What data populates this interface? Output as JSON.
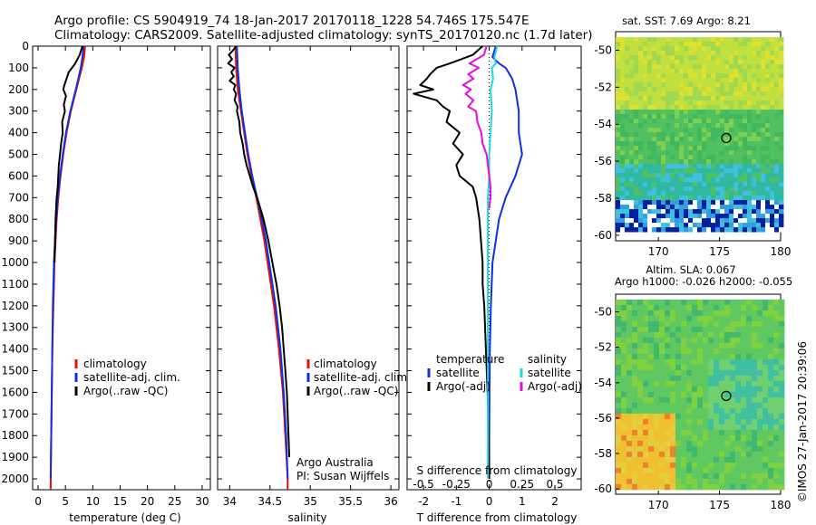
{
  "header": {
    "line1": "Argo profile: CS 5904919_74 18-Jan-2017 20170118_1228 54.746S 175.547E",
    "line2": "Climatology: CARS2009. Satellite-adjusted climatology: synTS_20170120.nc (1.7d later)"
  },
  "colors": {
    "clim": "#e01010",
    "sat": "#1030e0",
    "argo": "#000000",
    "sat_s": "#20d8e0",
    "argo_s": "#e010e0"
  },
  "chart_data": [
    {
      "type": "line",
      "id": "temperature",
      "xlabel": "temperature (deg C)",
      "xlim": [
        -1,
        31.5
      ],
      "ylim": [
        0,
        2050
      ],
      "xticks": [
        0,
        5,
        10,
        15,
        20,
        25,
        30
      ],
      "yticks": [
        0,
        100,
        200,
        300,
        400,
        500,
        600,
        700,
        800,
        900,
        1000,
        1100,
        1200,
        1300,
        1400,
        1500,
        1600,
        1700,
        1800,
        1900,
        2000
      ],
      "legend": [
        "climatology",
        "satellite-adj. clim.",
        "Argo(..raw -QC)"
      ],
      "series": [
        {
          "name": "climatology",
          "color_key": "clim",
          "depth": [
            0,
            50,
            100,
            200,
            300,
            400,
            500,
            600,
            700,
            800,
            900,
            1000,
            1200,
            1400,
            1600,
            1800,
            2000,
            2050
          ],
          "values": [
            8.6,
            8.4,
            8.0,
            7.0,
            6.0,
            5.2,
            4.6,
            4.1,
            3.7,
            3.4,
            3.2,
            3.0,
            2.8,
            2.6,
            2.5,
            2.4,
            2.3,
            2.3
          ]
        },
        {
          "name": "satellite",
          "color_key": "sat",
          "depth": [
            0,
            50,
            100,
            200,
            300,
            400,
            500,
            600,
            700,
            800,
            900,
            1000,
            1200,
            1400,
            1600,
            1800,
            2000
          ],
          "values": [
            8.3,
            8.1,
            7.8,
            6.9,
            5.9,
            5.1,
            4.5,
            4.0,
            3.6,
            3.3,
            3.1,
            2.9,
            2.7,
            2.6,
            2.5,
            2.4,
            2.3
          ]
        },
        {
          "name": "argo",
          "color_key": "argo",
          "depth": [
            0,
            40,
            80,
            120,
            150,
            180,
            200,
            230,
            270,
            300,
            350,
            400,
            450,
            500,
            550,
            600,
            650,
            700,
            750,
            800,
            850,
            900,
            1000
          ],
          "values": [
            8.1,
            7.6,
            6.8,
            5.6,
            5.2,
            4.8,
            4.6,
            5.1,
            4.7,
            4.9,
            4.4,
            4.5,
            4.2,
            4.0,
            3.8,
            3.7,
            3.6,
            3.4,
            3.3,
            3.2,
            3.15,
            3.1,
            3.0
          ]
        }
      ]
    },
    {
      "type": "line",
      "id": "salinity",
      "xlabel": "salinity",
      "xlim": [
        33.85,
        36.1
      ],
      "ylim": [
        0,
        2050
      ],
      "xticks": [
        34,
        34.5,
        35,
        35.5,
        36
      ],
      "legend": [
        "climatology",
        "satellite-adj. clim.",
        "Argo(..raw -QC)"
      ],
      "annotation": [
        "Argo Australia",
        "PI: Susan Wijffels"
      ],
      "series": [
        {
          "name": "climatology",
          "color_key": "clim",
          "depth": [
            0,
            100,
            200,
            300,
            400,
            500,
            600,
            700,
            800,
            900,
            1000,
            1200,
            1400,
            1600,
            1800,
            2000,
            2050
          ],
          "values": [
            34.07,
            34.08,
            34.1,
            34.14,
            34.18,
            34.22,
            34.27,
            34.33,
            34.38,
            34.43,
            34.47,
            34.55,
            34.61,
            34.66,
            34.69,
            34.72,
            34.72
          ]
        },
        {
          "name": "satellite",
          "color_key": "sat",
          "depth": [
            0,
            100,
            200,
            300,
            400,
            500,
            600,
            700,
            800,
            900,
            1000,
            1200,
            1400,
            1600,
            1800,
            2000
          ],
          "values": [
            34.09,
            34.1,
            34.12,
            34.15,
            34.19,
            34.23,
            34.28,
            34.34,
            34.4,
            34.45,
            34.49,
            34.57,
            34.63,
            34.67,
            34.7,
            34.72
          ]
        },
        {
          "name": "argo",
          "color_key": "argo",
          "depth": [
            0,
            20,
            40,
            60,
            80,
            100,
            120,
            140,
            160,
            180,
            200,
            220,
            250,
            280,
            300,
            350,
            400,
            450,
            500,
            550,
            600,
            650,
            700,
            800,
            900,
            1000,
            1100,
            1200,
            1300,
            1400,
            1500,
            1600,
            1700,
            1800,
            1900
          ],
          "values": [
            34.08,
            34.04,
            33.99,
            34.03,
            33.98,
            34.06,
            34.02,
            34.05,
            34.0,
            34.07,
            34.05,
            34.08,
            34.06,
            34.1,
            34.09,
            34.12,
            34.13,
            34.16,
            34.18,
            34.21,
            34.25,
            34.29,
            34.34,
            34.42,
            34.48,
            34.53,
            34.58,
            34.62,
            34.65,
            34.67,
            34.69,
            34.71,
            34.72,
            34.73,
            34.74
          ]
        }
      ]
    },
    {
      "type": "line",
      "id": "difference",
      "xlabel": "T difference from climatology",
      "xlabel2": "S difference from climatology",
      "xlim": [
        -2.5,
        2.8
      ],
      "ylim": [
        0,
        2050
      ],
      "xticks": [
        -2,
        -1,
        0,
        1,
        2
      ],
      "sticks": [
        "-0.5",
        "-0.25",
        "0",
        "0.25",
        "0.5"
      ],
      "legend_left_title": "temperature",
      "legend_right_title": "salinity",
      "legend": [
        "satellite",
        "Argo(-adj)",
        "satellite",
        "Argo(-adj)"
      ],
      "series": [
        {
          "name": "T satellite",
          "color_key": "sat",
          "depth": [
            0,
            50,
            80,
            100,
            150,
            200,
            300,
            400,
            500,
            600,
            700,
            800,
            900,
            1000,
            1200,
            1400,
            1600,
            1800,
            2000
          ],
          "values": [
            0.2,
            0.1,
            0.3,
            0.5,
            0.7,
            0.8,
            0.9,
            0.9,
            1.0,
            0.8,
            0.5,
            0.3,
            0.2,
            0.1,
            0.05,
            0.02,
            0.01,
            0.0,
            0.0
          ]
        },
        {
          "name": "T argo",
          "color_key": "argo",
          "depth": [
            0,
            40,
            80,
            100,
            130,
            150,
            180,
            200,
            220,
            250,
            280,
            300,
            350,
            400,
            450,
            500,
            550,
            600,
            650,
            700,
            800,
            900,
            1000,
            1100,
            1200,
            1400,
            1600,
            1800,
            2000
          ],
          "values": [
            -0.2,
            -0.5,
            -1.2,
            -1.6,
            -1.8,
            -1.9,
            -2.1,
            -1.7,
            -2.3,
            -1.6,
            -1.4,
            -1.2,
            -1.3,
            -0.9,
            -1.1,
            -0.8,
            -1.0,
            -0.9,
            -0.5,
            -0.4,
            -0.3,
            -0.25,
            -0.2,
            -0.2,
            -0.15,
            -0.1,
            -0.05,
            -0.02,
            0.0
          ]
        },
        {
          "name": "S satellite",
          "color_key": "sat_s",
          "depth": [
            0,
            50,
            80,
            100,
            150,
            200,
            300,
            400,
            500,
            600,
            700,
            800,
            900,
            1000,
            1200,
            1400,
            1600,
            1800,
            2000
          ],
          "values": [
            0.06,
            0.04,
            0.05,
            0.02,
            0.03,
            0.01,
            0.02,
            0.01,
            0.0,
            0.0,
            -0.01,
            -0.01,
            -0.01,
            -0.01,
            -0.01,
            -0.01,
            -0.01,
            -0.01,
            -0.01
          ]
        },
        {
          "name": "S argo",
          "color_key": "argo_s",
          "depth": [
            0,
            40,
            80,
            100,
            130,
            150,
            180,
            200,
            220,
            250,
            280,
            300,
            350,
            400,
            450,
            500,
            550,
            600,
            650,
            700,
            750
          ],
          "values": [
            -0.02,
            -0.04,
            -0.15,
            -0.08,
            -0.16,
            -0.12,
            -0.2,
            -0.14,
            -0.18,
            -0.12,
            -0.16,
            -0.1,
            -0.09,
            -0.06,
            -0.05,
            -0.02,
            -0.01,
            0.0,
            0.01,
            0.01,
            0.0
          ]
        }
      ]
    }
  ],
  "maps": {
    "sst": {
      "title": "sat. SST: 7.69 Argo: 8.21",
      "lon_ticks": [
        170,
        175,
        180
      ],
      "lat_ticks": [
        -50,
        -52,
        -54,
        -56,
        -58,
        -60
      ],
      "lon_range": [
        166.5,
        180
      ],
      "lat_range": [
        -60.3,
        -49
      ]
    },
    "sla": {
      "title1": "Altim. SLA: 0.067",
      "title2": "Argo h1000: -0.026 h2000: -0.055",
      "lon_ticks": [
        170,
        175,
        180
      ],
      "lat_ticks": [
        -50,
        -52,
        -54,
        -56,
        -58,
        -60
      ],
      "lon_range": [
        166.5,
        180
      ],
      "lat_range": [
        -60.3,
        -49
      ]
    },
    "float_position": {
      "lon": 175.547,
      "lat": -54.746
    }
  },
  "credit": "©IMOS 27-Jan-2017 20:39:06"
}
